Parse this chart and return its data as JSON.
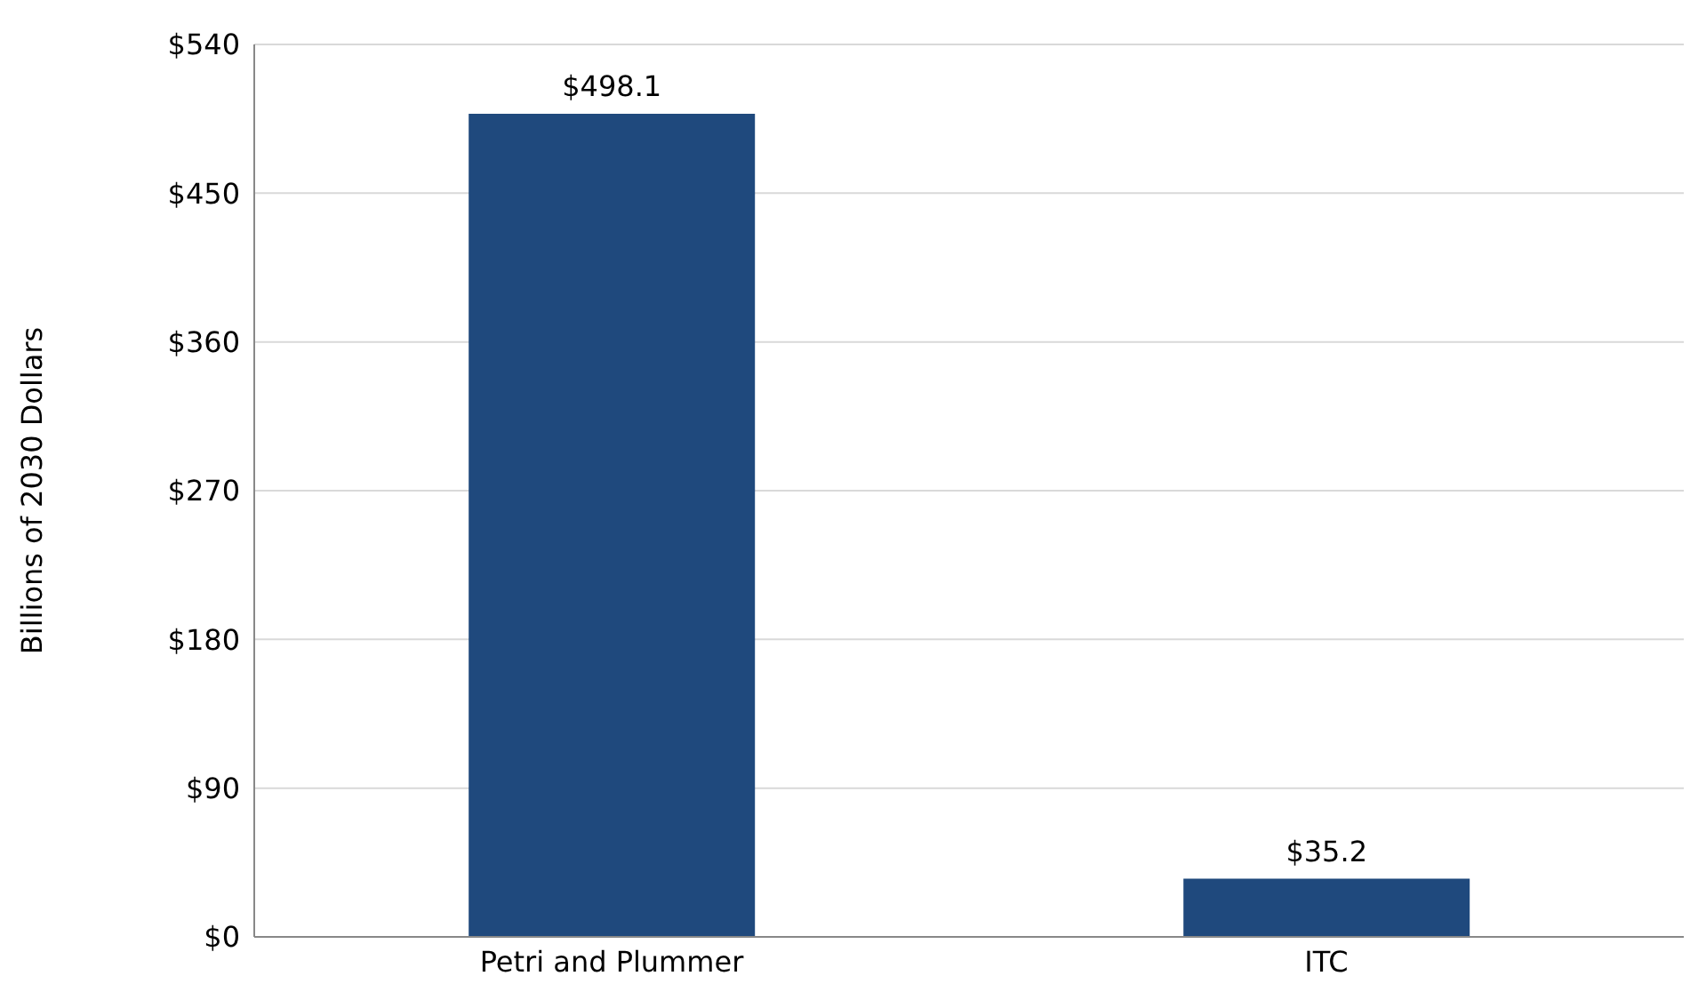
{
  "chart_data": {
    "type": "bar",
    "ylabel": "Billions of 2030 Dollars",
    "categories": [
      "Petri and Plummer",
      "ITC"
    ],
    "values": [
      498.1,
      35.2
    ],
    "color": "#1f497d",
    "value_labels": [
      "$498.1",
      "$35.2"
    ],
    "ylim": [
      0,
      540
    ],
    "yticks": [
      {
        "value": 0,
        "label": "$0"
      },
      {
        "value": 90,
        "label": "$90"
      },
      {
        "value": 180,
        "label": "$180"
      },
      {
        "value": 270,
        "label": "$270"
      },
      {
        "value": 360,
        "label": "$360"
      },
      {
        "value": 450,
        "label": "$450"
      },
      {
        "value": 540,
        "label": "$540"
      }
    ],
    "grid": "y"
  }
}
